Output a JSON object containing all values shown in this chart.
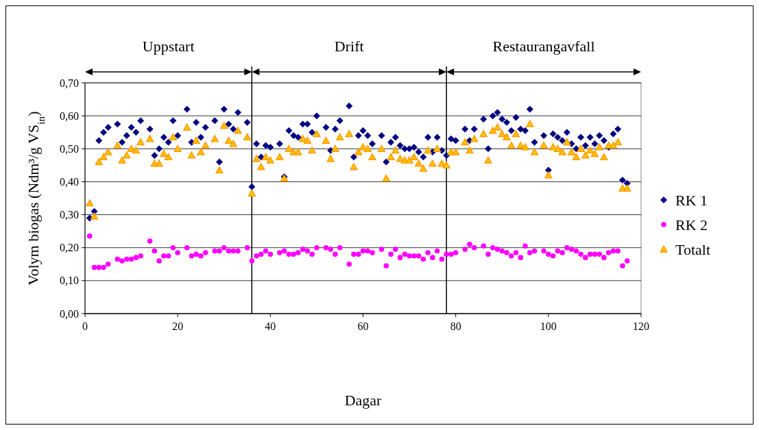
{
  "chart_data": {
    "type": "scatter",
    "xlabel": "Dagar",
    "ylabel": "Volym biogas (Ndm³/g VS$_{in}$)",
    "annotations": [
      "Uppstart",
      "Drift",
      "Restaurangavfall"
    ],
    "xlim": [
      0,
      120
    ],
    "xticks": [
      0,
      20,
      40,
      60,
      80,
      100,
      120
    ],
    "ylim": [
      0,
      0.7
    ],
    "yticks": [
      {
        "value": 0,
        "label": "0,00"
      },
      {
        "value": 0.1,
        "label": "0,10"
      },
      {
        "value": 0.2,
        "label": "0,20"
      },
      {
        "value": 0.3,
        "label": "0,30"
      },
      {
        "value": 0.4,
        "label": "0,40"
      },
      {
        "value": 0.5,
        "label": "0,50"
      },
      {
        "value": 0.6,
        "label": "0,60"
      },
      {
        "value": 0.7,
        "label": "0,70"
      }
    ],
    "grid": "y",
    "legend": "right",
    "ref_lines": [
      {
        "axis": "x",
        "value": 36,
        "color": "#000000"
      },
      {
        "axis": "x",
        "value": 78,
        "color": "#000000"
      }
    ],
    "x": [
      1,
      2,
      3,
      4,
      5,
      7,
      8,
      9,
      10,
      11,
      12,
      14,
      15,
      16,
      17,
      18,
      19,
      20,
      22,
      23,
      24,
      25,
      26,
      28,
      29,
      30,
      31,
      32,
      33,
      35,
      36,
      37,
      38,
      39,
      40,
      42,
      43,
      44,
      45,
      46,
      47,
      48,
      49,
      50,
      52,
      53,
      54,
      55,
      57,
      58,
      59,
      60,
      61,
      62,
      64,
      65,
      66,
      67,
      68,
      69,
      70,
      71,
      72,
      73,
      74,
      75,
      76,
      77,
      78,
      79,
      80,
      82,
      83,
      84,
      86,
      87,
      88,
      89,
      90,
      91,
      92,
      93,
      94,
      95,
      96,
      97,
      99,
      100,
      101,
      102,
      103,
      104,
      105,
      106,
      107,
      108,
      109,
      110,
      111,
      112,
      113,
      114,
      115,
      116,
      117
    ],
    "series": [
      {
        "name": "RK 1",
        "color": "#000080",
        "marker": "diamond",
        "values": [
          0.29,
          0.31,
          0.525,
          0.55,
          0.565,
          0.575,
          0.52,
          0.54,
          0.565,
          0.55,
          0.585,
          0.56,
          0.48,
          0.5,
          0.535,
          0.52,
          0.585,
          0.54,
          0.62,
          0.52,
          0.58,
          0.535,
          0.565,
          0.585,
          0.46,
          0.62,
          0.575,
          0.56,
          0.61,
          0.58,
          0.385,
          0.515,
          0.475,
          0.51,
          0.505,
          0.515,
          0.415,
          0.555,
          0.54,
          0.535,
          0.575,
          0.575,
          0.55,
          0.6,
          0.565,
          0.495,
          0.56,
          0.585,
          0.63,
          0.475,
          0.54,
          0.555,
          0.54,
          0.515,
          0.54,
          0.46,
          0.52,
          0.535,
          0.51,
          0.5,
          0.5,
          0.505,
          0.49,
          0.475,
          0.535,
          0.49,
          0.535,
          0.495,
          0.48,
          0.53,
          0.525,
          0.56,
          0.525,
          0.56,
          0.59,
          0.5,
          0.6,
          0.61,
          0.59,
          0.58,
          0.555,
          0.595,
          0.56,
          0.555,
          0.62,
          0.52,
          0.54,
          0.435,
          0.545,
          0.535,
          0.525,
          0.55,
          0.515,
          0.5,
          0.535,
          0.51,
          0.535,
          0.515,
          0.54,
          0.525,
          0.505,
          0.545,
          0.56,
          0.405,
          0.395
        ]
      },
      {
        "name": "RK 2",
        "color": "#ff00ff",
        "marker": "circle",
        "values": [
          0.235,
          0.14,
          0.14,
          0.14,
          0.15,
          0.165,
          0.16,
          0.165,
          0.165,
          0.17,
          0.175,
          0.22,
          0.19,
          0.16,
          0.175,
          0.175,
          0.2,
          0.185,
          0.2,
          0.175,
          0.18,
          0.175,
          0.185,
          0.19,
          0.19,
          0.2,
          0.19,
          0.19,
          0.19,
          0.2,
          0.16,
          0.175,
          0.18,
          0.19,
          0.18,
          0.185,
          0.19,
          0.18,
          0.18,
          0.185,
          0.195,
          0.19,
          0.18,
          0.2,
          0.2,
          0.195,
          0.18,
          0.2,
          0.15,
          0.18,
          0.18,
          0.19,
          0.19,
          0.185,
          0.195,
          0.145,
          0.18,
          0.195,
          0.17,
          0.18,
          0.175,
          0.175,
          0.175,
          0.165,
          0.185,
          0.17,
          0.19,
          0.165,
          0.18,
          0.18,
          0.185,
          0.195,
          0.21,
          0.2,
          0.205,
          0.18,
          0.2,
          0.195,
          0.19,
          0.185,
          0.175,
          0.185,
          0.17,
          0.205,
          0.185,
          0.19,
          0.19,
          0.18,
          0.175,
          0.19,
          0.185,
          0.2,
          0.195,
          0.19,
          0.18,
          0.17,
          0.18,
          0.18,
          0.18,
          0.17,
          0.185,
          0.19,
          0.19,
          0.145,
          0.16
        ]
      },
      {
        "name": "Totalt",
        "color": "#ffc000",
        "marker": "triangle",
        "values": [
          0.335,
          0.295,
          0.46,
          0.475,
          0.49,
          0.51,
          0.465,
          0.48,
          0.5,
          0.495,
          0.52,
          0.53,
          0.455,
          0.455,
          0.485,
          0.475,
          0.535,
          0.5,
          0.565,
          0.48,
          0.525,
          0.49,
          0.51,
          0.53,
          0.435,
          0.57,
          0.525,
          0.515,
          0.555,
          0.535,
          0.365,
          0.47,
          0.445,
          0.475,
          0.465,
          0.475,
          0.41,
          0.5,
          0.49,
          0.49,
          0.53,
          0.525,
          0.495,
          0.545,
          0.525,
          0.47,
          0.5,
          0.535,
          0.545,
          0.445,
          0.49,
          0.505,
          0.5,
          0.475,
          0.5,
          0.41,
          0.475,
          0.495,
          0.47,
          0.465,
          0.465,
          0.475,
          0.455,
          0.44,
          0.495,
          0.455,
          0.5,
          0.455,
          0.45,
          0.49,
          0.49,
          0.52,
          0.495,
          0.53,
          0.545,
          0.465,
          0.555,
          0.565,
          0.545,
          0.535,
          0.51,
          0.545,
          0.51,
          0.505,
          0.575,
          0.49,
          0.51,
          0.42,
          0.505,
          0.5,
          0.49,
          0.52,
          0.49,
          0.475,
          0.5,
          0.48,
          0.495,
          0.485,
          0.505,
          0.475,
          0.51,
          0.51,
          0.52,
          0.38,
          0.38
        ]
      }
    ]
  }
}
